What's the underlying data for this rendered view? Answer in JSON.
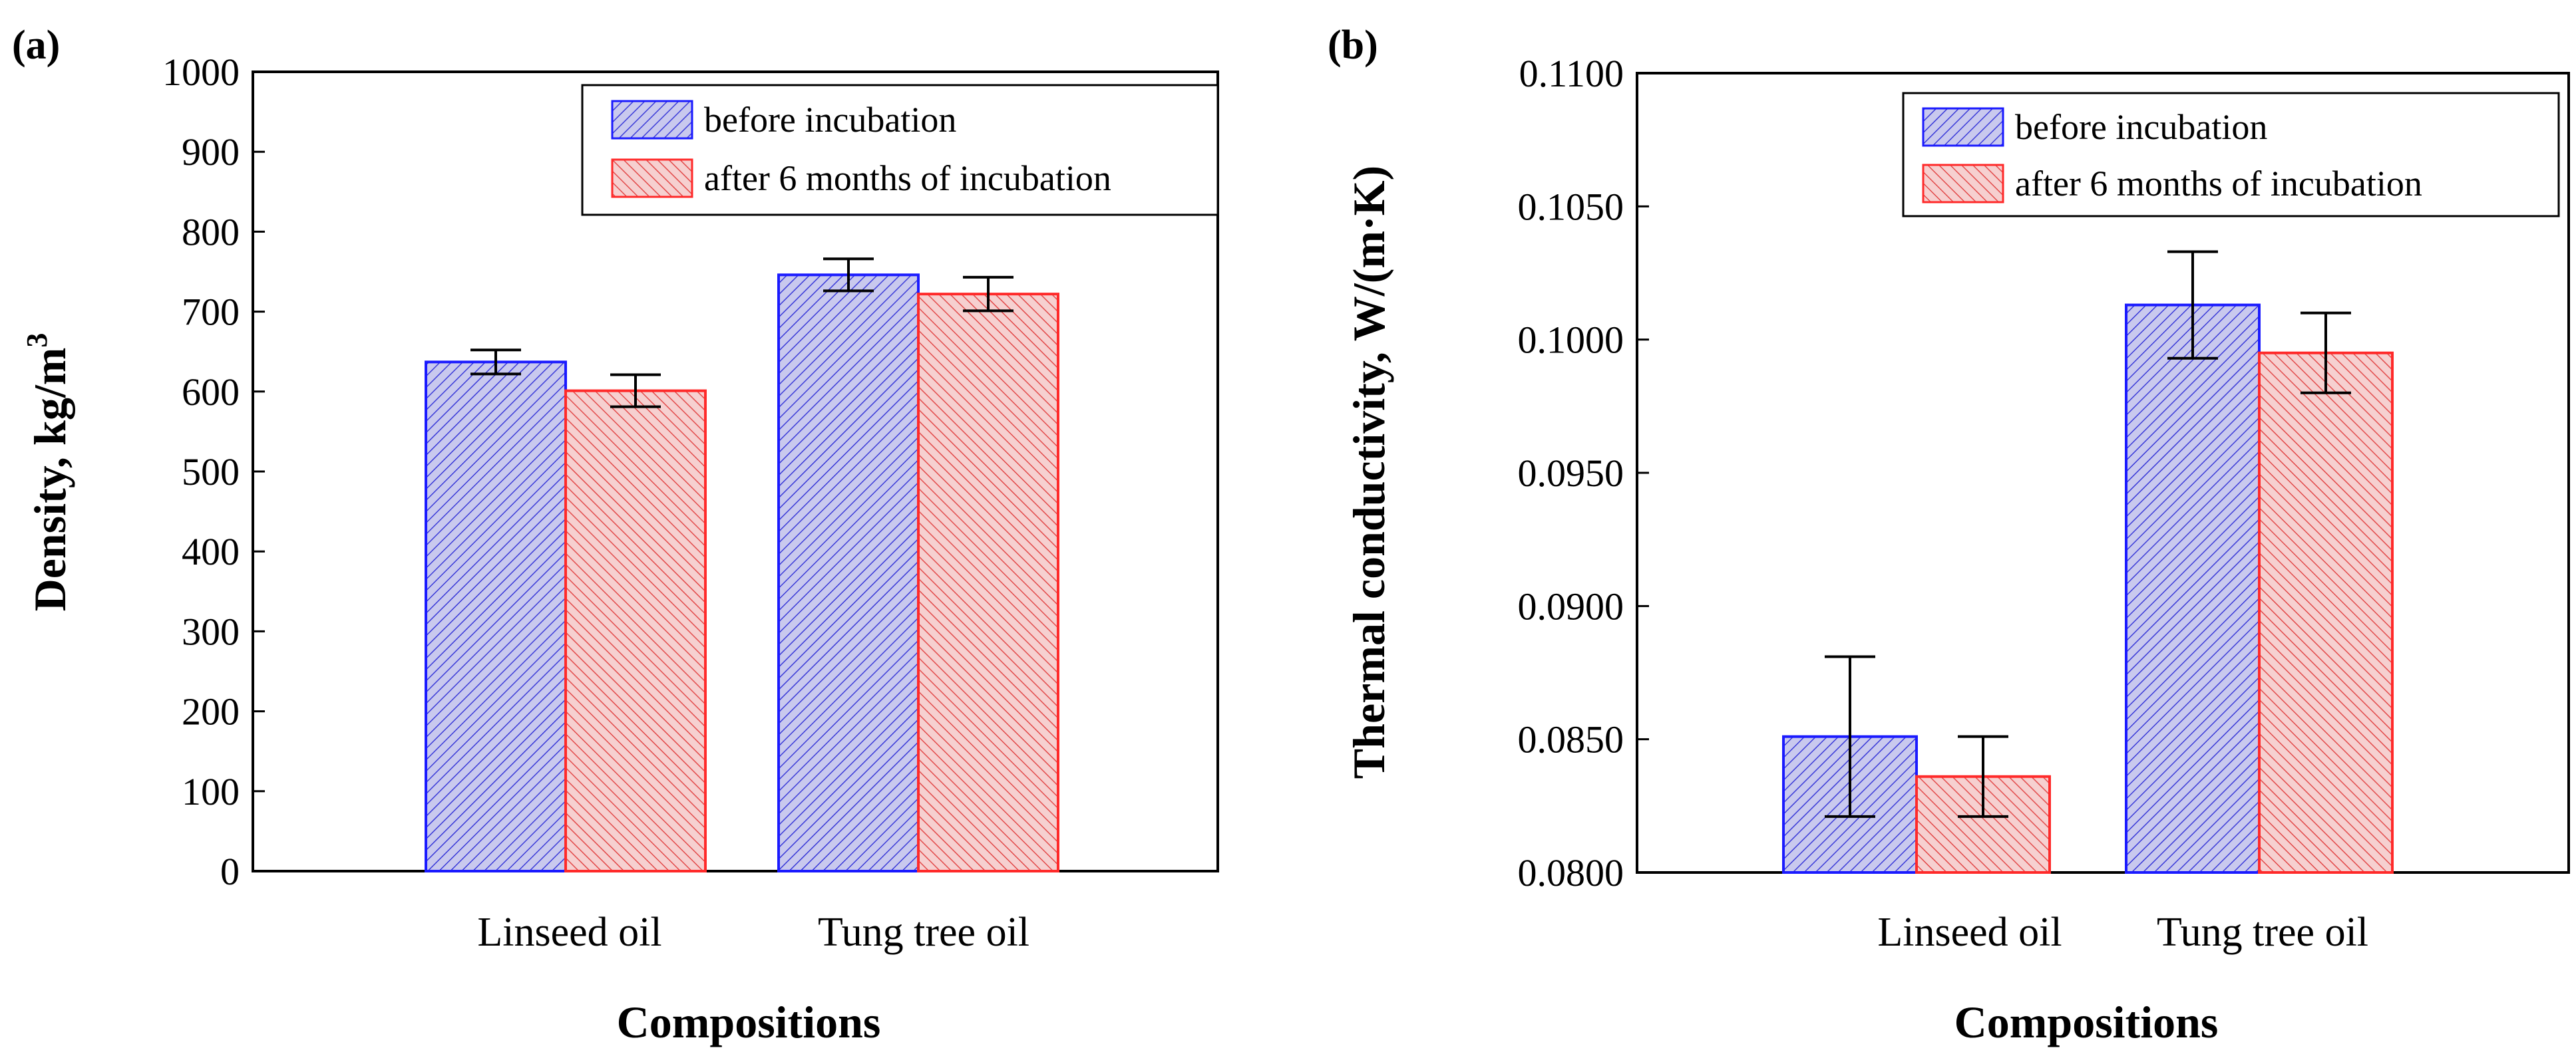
{
  "figure": {
    "panels": [
      {
        "label": "(a)",
        "ylabel": "Density, kg/m",
        "ylabel_sup": "3",
        "xlabel": "Compositions",
        "yticks": [
          "0",
          "100",
          "200",
          "300",
          "400",
          "500",
          "600",
          "700",
          "800",
          "900",
          "1000"
        ],
        "legend": [
          "before incubation",
          "after 6 months of incubation"
        ]
      },
      {
        "label": "(b)",
        "ylabel": "Thermal conductivity, W/(m·K)",
        "xlabel": "Compositions",
        "yticks": [
          "0.0800",
          "0.0850",
          "0.0900",
          "0.0950",
          "0.1000",
          "0.1050",
          "0.1100"
        ],
        "legend": [
          "before incubation",
          "after 6 months of incubation"
        ]
      }
    ]
  },
  "colors": {
    "before": "#1a1aff",
    "after": "#ff2a2a",
    "before_fill": "#b8b8e8",
    "after_fill": "#f3bcbc"
  },
  "chart_data": [
    {
      "type": "bar",
      "title": "(a)",
      "xlabel": "Compositions",
      "ylabel": "Density, kg/m3",
      "ylim": [
        0,
        1000
      ],
      "categories": [
        "Linseed oil",
        "Tung tree oil"
      ],
      "series": [
        {
          "name": "before incubation",
          "values": [
            637,
            746
          ],
          "errors": [
            15,
            20
          ]
        },
        {
          "name": "after 6 months of incubation",
          "values": [
            601,
            722
          ],
          "errors": [
            20,
            21
          ]
        }
      ],
      "legend_position": "top-right"
    },
    {
      "type": "bar",
      "title": "(b)",
      "xlabel": "Compositions",
      "ylabel": "Thermal conductivity, W/(m·K)",
      "ylim": [
        0.08,
        0.11
      ],
      "categories": [
        "Linseed oil",
        "Tung tree oil"
      ],
      "series": [
        {
          "name": "before incubation",
          "values": [
            0.0851,
            0.1013
          ],
          "errors": [
            0.003,
            0.002
          ]
        },
        {
          "name": "after 6 months of incubation",
          "values": [
            0.0836,
            0.0995
          ],
          "errors": [
            0.0015,
            0.0015
          ]
        }
      ],
      "legend_position": "top-right"
    }
  ]
}
